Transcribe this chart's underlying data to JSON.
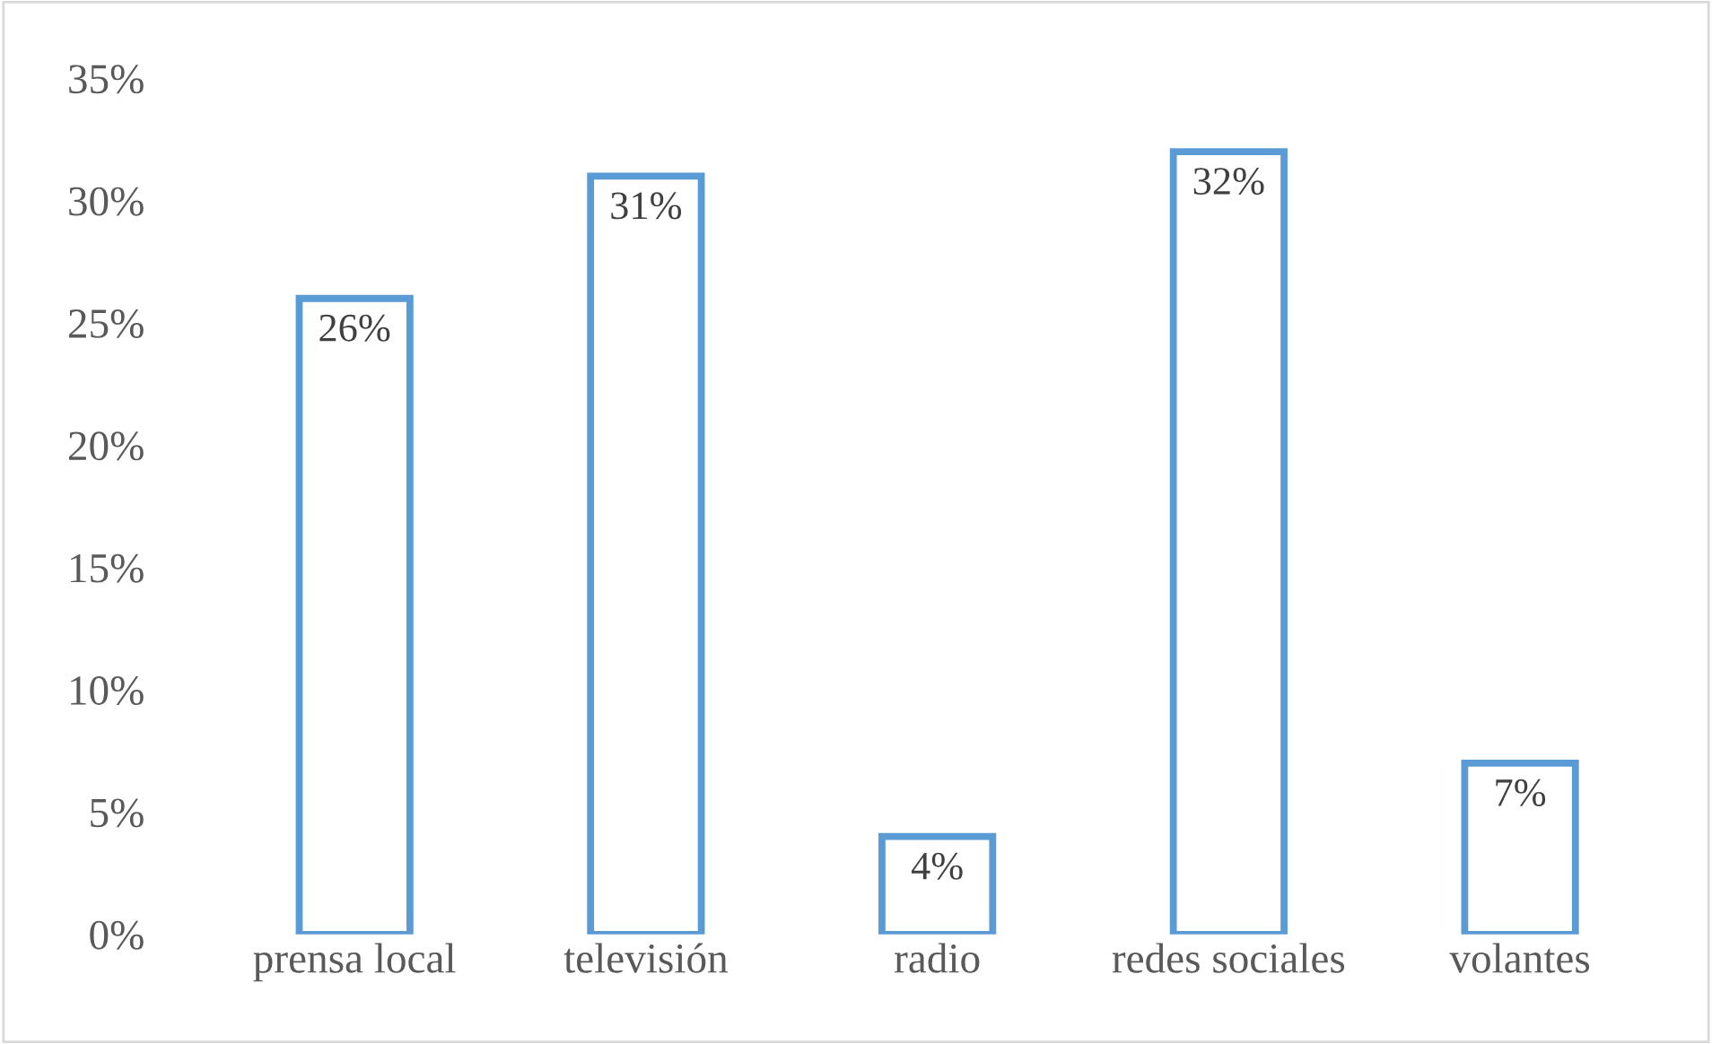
{
  "chart_data": {
    "type": "bar",
    "categories": [
      "prensa local",
      "televisión",
      "radio",
      "redes sociales",
      "volantes"
    ],
    "values": [
      26,
      31,
      4,
      32,
      7
    ],
    "value_labels": [
      "26%",
      "31%",
      "4%",
      "32%",
      "7%"
    ],
    "color": "#5b9bd5",
    "ylim": [
      0,
      35
    ],
    "yticks": [
      {
        "value": 0,
        "label": "0%"
      },
      {
        "value": 5,
        "label": "5%"
      },
      {
        "value": 10,
        "label": "10%"
      },
      {
        "value": 15,
        "label": "15%"
      },
      {
        "value": 20,
        "label": "20%"
      },
      {
        "value": 25,
        "label": "25%"
      },
      {
        "value": 30,
        "label": "30%"
      },
      {
        "value": 35,
        "label": "35%"
      }
    ],
    "grid": false,
    "legend": false
  }
}
